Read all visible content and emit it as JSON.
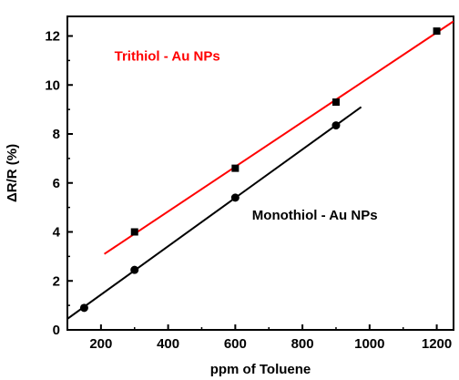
{
  "chart_data": {
    "type": "scatter",
    "title": "",
    "xlabel": "ppm of Toluene",
    "ylabel": "ΔR/R (%)",
    "xlim": [
      100,
      1250
    ],
    "ylim": [
      0,
      12.8
    ],
    "x_ticks": [
      200,
      400,
      600,
      800,
      1000,
      1200
    ],
    "y_ticks": [
      0,
      2,
      4,
      6,
      8,
      10,
      12
    ],
    "grid": false,
    "legend": "none",
    "series": [
      {
        "marker": "square",
        "color": "#000000",
        "points": [
          [
            300,
            4.0
          ],
          [
            600,
            6.6
          ],
          [
            900,
            9.3
          ],
          [
            1200,
            12.2
          ]
        ],
        "fit_line": {
          "color": "#ff0000",
          "x": [
            210,
            1250
          ],
          "y": [
            3.1,
            12.6
          ]
        }
      },
      {
        "marker": "circle",
        "color": "#000000",
        "points": [
          [
            150,
            0.9
          ],
          [
            300,
            2.45
          ],
          [
            600,
            5.4
          ],
          [
            900,
            8.35
          ]
        ],
        "fit_line": {
          "color": "#000000",
          "x": [
            100,
            975
          ],
          "y": [
            0.45,
            9.1
          ]
        }
      }
    ],
    "annotations": [
      {
        "text": "Trithiol - Au NPs",
        "color": "#ff0000",
        "x": 240,
        "y": 11.0
      },
      {
        "text": "Monothiol - Au NPs",
        "color": "#000000",
        "x": 650,
        "y": 4.5
      }
    ]
  }
}
